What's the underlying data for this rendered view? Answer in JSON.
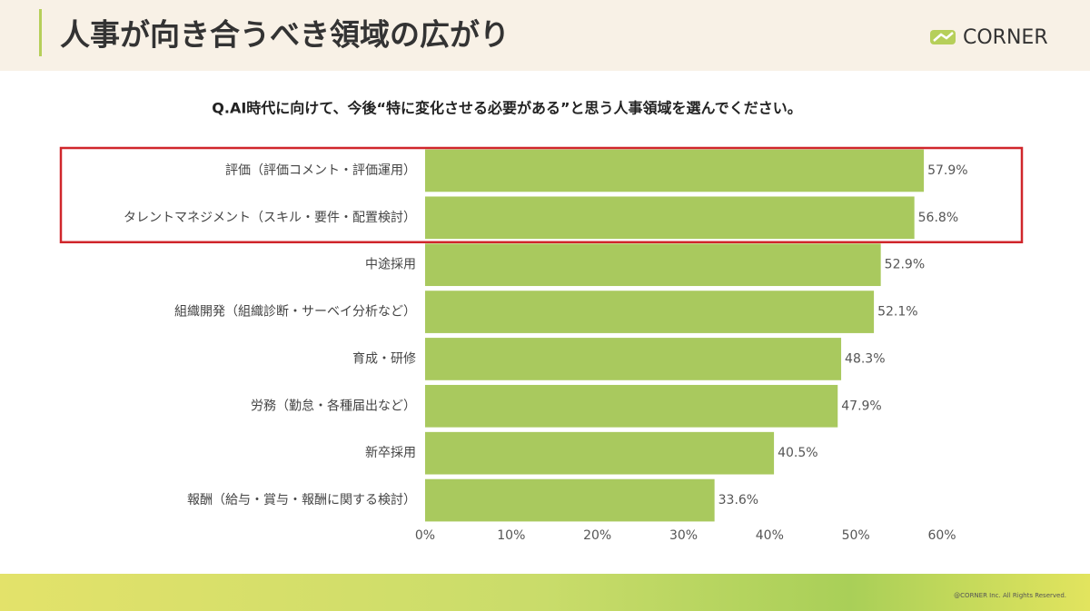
{
  "header": {
    "title": "人事が向き合うべき領域の広がり",
    "logo": "CORNER"
  },
  "footer": {
    "copyright": "@CORNER Inc. All Rights Reserved."
  },
  "chart_data": {
    "type": "bar",
    "orientation": "horizontal",
    "title": "Q.AI時代に向けて、今後“特に変化させる必要がある”と思う人事領域を選んでください。",
    "categories": [
      "評価（評価コメント・評価運用）",
      "タレントマネジメント（スキル・要件・配置検討）",
      "中途採用",
      "組織開発（組織診断・サーベイ分析など）",
      "育成・研修",
      "労務（勤怠・各種届出など）",
      "新卒採用",
      "報酬（給与・賞与・報酬に関する検討）"
    ],
    "values": [
      57.9,
      56.8,
      52.9,
      52.1,
      48.3,
      47.9,
      40.5,
      33.6
    ],
    "value_labels": [
      "57.9%",
      "56.8%",
      "52.9%",
      "52.1%",
      "48.3%",
      "47.9%",
      "40.5%",
      "33.6%"
    ],
    "color": "#a9c95e",
    "xlim": [
      0,
      60
    ],
    "xticks": [
      {
        "value": 0,
        "label": "0%"
      },
      {
        "value": 10,
        "label": "10%"
      },
      {
        "value": 20,
        "label": "20%"
      },
      {
        "value": 30,
        "label": "30%"
      },
      {
        "value": 40,
        "label": "40%"
      },
      {
        "value": 50,
        "label": "50%"
      },
      {
        "value": 60,
        "label": "60%"
      }
    ],
    "grid": false
  }
}
